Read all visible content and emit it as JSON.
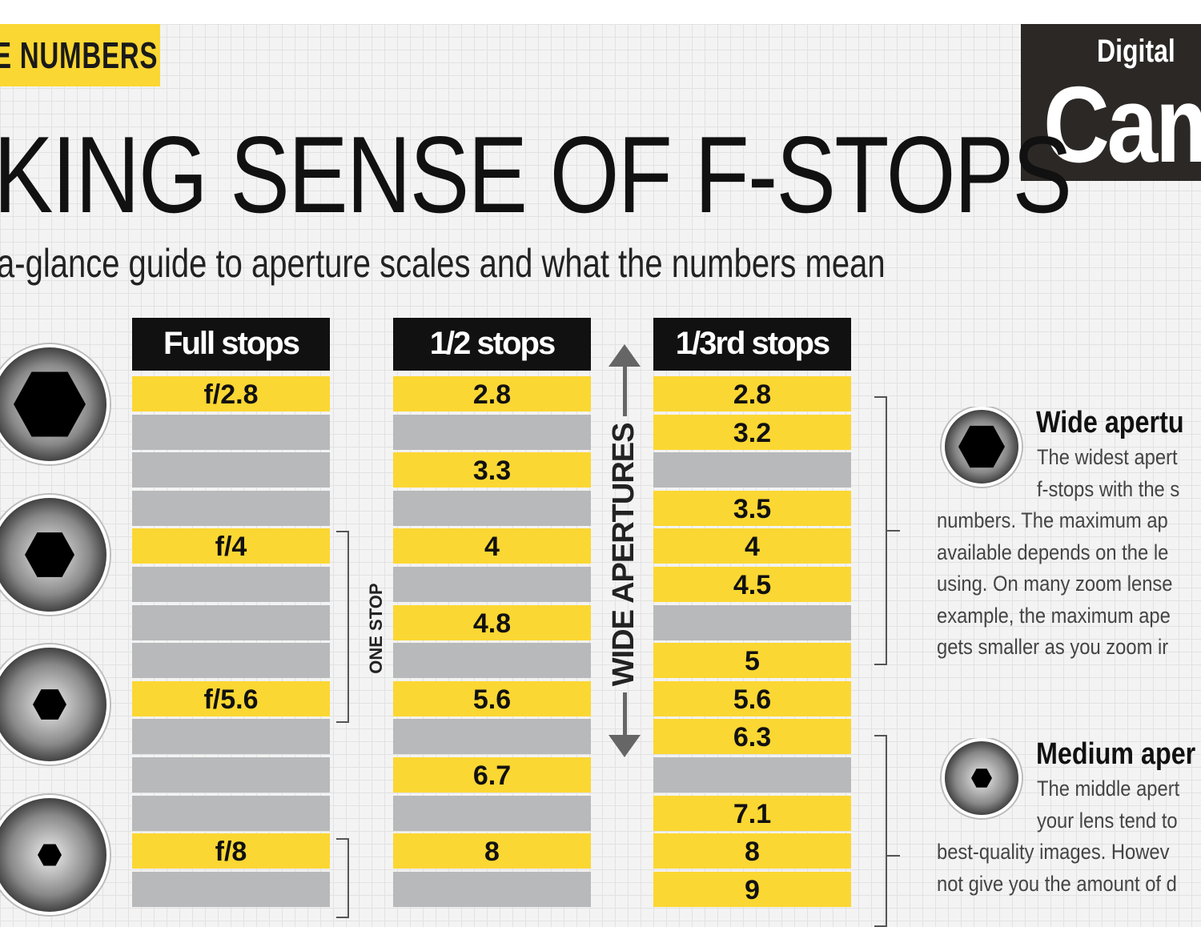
{
  "tag": "E NUMBERS",
  "logo": {
    "line1": "Digital",
    "line2": "Cam"
  },
  "title": "KING SENSE OF F-STOPS",
  "subtitle": "a-glance guide to aperture scales and what the numbers mean",
  "columns": [
    {
      "header": "Full stops",
      "rows": [
        "f/2.8",
        "",
        "",
        "",
        "f/4",
        "",
        "",
        "",
        "f/5.6",
        "",
        "",
        "",
        "f/8",
        ""
      ]
    },
    {
      "header": "1/2 stops",
      "rows": [
        "2.8",
        "",
        "3.3",
        "",
        "4",
        "",
        "4.8",
        "",
        "5.6",
        "",
        "6.7",
        "",
        "8",
        ""
      ]
    },
    {
      "header": "1/3rd stops",
      "rows": [
        "2.8",
        "3.2",
        "",
        "3.5",
        "4",
        "4.5",
        "",
        "5",
        "5.6",
        "6.3",
        "",
        "7.1",
        "8",
        "9"
      ]
    }
  ],
  "one_stop_label": "ONE STOP",
  "wide_apertures_label": "WIDE APERTURES",
  "sections": [
    {
      "title": "Wide apertu",
      "lines": [
        "The widest apert",
        "f-stops with the s",
        "numbers. The maximum ap",
        "available depends on the le",
        "using. On many zoom lense",
        "example, the maximum ape",
        "gets smaller as you zoom ir"
      ]
    },
    {
      "title": "Medium aper",
      "lines": [
        "The middle apert",
        "your lens tend to",
        "best-quality images. Howev",
        "not give you the amount of d"
      ]
    }
  ],
  "colors": {
    "yellow": "#fbd733",
    "gray": "#b7b9bb",
    "black": "#111111"
  }
}
